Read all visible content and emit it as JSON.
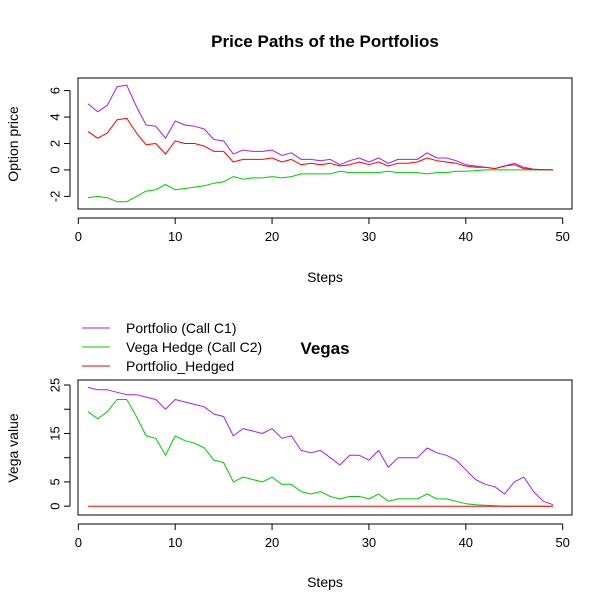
{
  "colors": {
    "portfolio": "#A020F0",
    "vega_hedge": "#00CC00",
    "hedged": "#FF0000"
  },
  "chart_data": [
    {
      "type": "line",
      "title": "Price Paths of the Portfolios",
      "xlabel": "Steps",
      "ylabel": "Option price",
      "xlim": [
        1,
        49
      ],
      "ylim": [
        -2.5,
        6.5
      ],
      "xticks": [
        0,
        10,
        20,
        30,
        40,
        50
      ],
      "yticks": [
        -2,
        0,
        2,
        4,
        6
      ],
      "x": [
        1,
        2,
        3,
        4,
        5,
        6,
        7,
        8,
        9,
        10,
        11,
        12,
        13,
        14,
        15,
        16,
        17,
        18,
        19,
        20,
        21,
        22,
        23,
        24,
        25,
        26,
        27,
        28,
        29,
        30,
        31,
        32,
        33,
        34,
        35,
        36,
        37,
        38,
        39,
        40,
        41,
        42,
        43,
        44,
        45,
        46,
        47,
        48,
        49
      ],
      "series": [
        {
          "color": "#A020F0",
          "values": [
            5.0,
            4.4,
            4.9,
            6.3,
            6.4,
            4.8,
            3.4,
            3.3,
            2.4,
            3.7,
            3.4,
            3.3,
            3.1,
            2.3,
            2.2,
            1.2,
            1.5,
            1.4,
            1.4,
            1.5,
            1.1,
            1.3,
            0.8,
            0.8,
            0.7,
            0.8,
            0.4,
            0.7,
            0.9,
            0.6,
            0.9,
            0.5,
            0.8,
            0.8,
            0.8,
            1.3,
            0.9,
            0.9,
            0.7,
            0.4,
            0.3,
            0.2,
            0.1,
            0.3,
            0.5,
            0.2,
            0.05,
            0.02,
            0.0
          ]
        },
        {
          "color": "#00CC00",
          "values": [
            -2.1,
            -2.0,
            -2.1,
            -2.4,
            -2.4,
            -2.0,
            -1.6,
            -1.5,
            -1.1,
            -1.5,
            -1.4,
            -1.3,
            -1.2,
            -1.0,
            -0.9,
            -0.5,
            -0.7,
            -0.6,
            -0.6,
            -0.5,
            -0.6,
            -0.5,
            -0.3,
            -0.3,
            -0.3,
            -0.3,
            -0.1,
            -0.2,
            -0.2,
            -0.2,
            -0.2,
            -0.1,
            -0.2,
            -0.2,
            -0.2,
            -0.3,
            -0.2,
            -0.2,
            -0.1,
            -0.1,
            -0.05,
            0.0,
            0.0,
            0.0,
            0.0,
            0.0,
            0.0,
            0.0,
            0.0
          ]
        },
        {
          "color": "#FF0000",
          "values": [
            2.9,
            2.4,
            2.8,
            3.8,
            3.9,
            2.8,
            1.9,
            2.0,
            1.2,
            2.2,
            2.0,
            2.0,
            1.8,
            1.4,
            1.4,
            0.6,
            0.8,
            0.8,
            0.8,
            0.9,
            0.6,
            0.8,
            0.4,
            0.5,
            0.4,
            0.5,
            0.3,
            0.4,
            0.6,
            0.4,
            0.6,
            0.3,
            0.5,
            0.5,
            0.6,
            0.9,
            0.7,
            0.6,
            0.5,
            0.3,
            0.2,
            0.2,
            0.1,
            0.3,
            0.4,
            0.1,
            0.05,
            0.02,
            0.0
          ]
        }
      ]
    },
    {
      "type": "line",
      "title": "Vegas",
      "xlabel": "Steps",
      "ylabel": "Vega value",
      "xlim": [
        1,
        49
      ],
      "ylim": [
        -1,
        25
      ],
      "xticks": [
        0,
        10,
        20,
        30,
        40,
        50
      ],
      "yticks": [
        0,
        5,
        10,
        15,
        20,
        25
      ],
      "ytick_labels": [
        "0",
        "5",
        "",
        "15",
        "",
        "25"
      ],
      "legend": {
        "position": "top-left",
        "entries": [
          {
            "label": "Portfolio (Call C1)",
            "color": "#A020F0"
          },
          {
            "label": "Vega Hedge (Call C2)",
            "color": "#00CC00"
          },
          {
            "label": "Portfolio_Hedged",
            "color": "#FF0000"
          }
        ]
      },
      "x": [
        1,
        2,
        3,
        4,
        5,
        6,
        7,
        8,
        9,
        10,
        11,
        12,
        13,
        14,
        15,
        16,
        17,
        18,
        19,
        20,
        21,
        22,
        23,
        24,
        25,
        26,
        27,
        28,
        29,
        30,
        31,
        32,
        33,
        34,
        35,
        36,
        37,
        38,
        39,
        40,
        41,
        42,
        43,
        44,
        45,
        46,
        47,
        48,
        49
      ],
      "series": [
        {
          "color": "#A020F0",
          "values": [
            24.5,
            24.0,
            24.0,
            23.5,
            23.0,
            23.0,
            22.5,
            22.0,
            20.0,
            22.0,
            21.5,
            21.0,
            20.5,
            19.0,
            18.5,
            14.5,
            16.0,
            15.5,
            15.0,
            16.0,
            14.0,
            14.5,
            11.5,
            11.0,
            11.5,
            10.0,
            8.5,
            10.5,
            10.5,
            9.5,
            11.5,
            8.0,
            10.0,
            10.0,
            10.0,
            12.0,
            11.0,
            10.5,
            9.5,
            7.5,
            5.5,
            4.5,
            4.0,
            2.5,
            5.0,
            6.0,
            3.0,
            1.0,
            0.3
          ]
        },
        {
          "color": "#00CC00",
          "values": [
            19.5,
            18.0,
            19.5,
            22.0,
            22.0,
            18.5,
            14.5,
            14.0,
            10.5,
            14.5,
            13.5,
            13.0,
            12.0,
            9.5,
            9.0,
            5.0,
            6.0,
            5.5,
            5.0,
            6.0,
            4.5,
            4.5,
            3.0,
            2.5,
            3.0,
            2.0,
            1.5,
            2.0,
            2.0,
            1.5,
            2.5,
            1.0,
            1.5,
            1.5,
            1.5,
            2.5,
            1.5,
            1.5,
            1.0,
            0.5,
            0.3,
            0.2,
            0.1,
            0.0,
            0.0,
            0.0,
            0.0,
            0.0,
            0.0
          ]
        },
        {
          "color": "#FF0000",
          "values": [
            0,
            0,
            0,
            0,
            0,
            0,
            0,
            0,
            0,
            0,
            0,
            0,
            0,
            0,
            0,
            0,
            0,
            0,
            0,
            0,
            0,
            0,
            0,
            0,
            0,
            0,
            0,
            0,
            0,
            0,
            0,
            0,
            0,
            0,
            0,
            0,
            0,
            0,
            0,
            0,
            0,
            0,
            0,
            0,
            0,
            0,
            0,
            0,
            0
          ]
        }
      ]
    }
  ]
}
